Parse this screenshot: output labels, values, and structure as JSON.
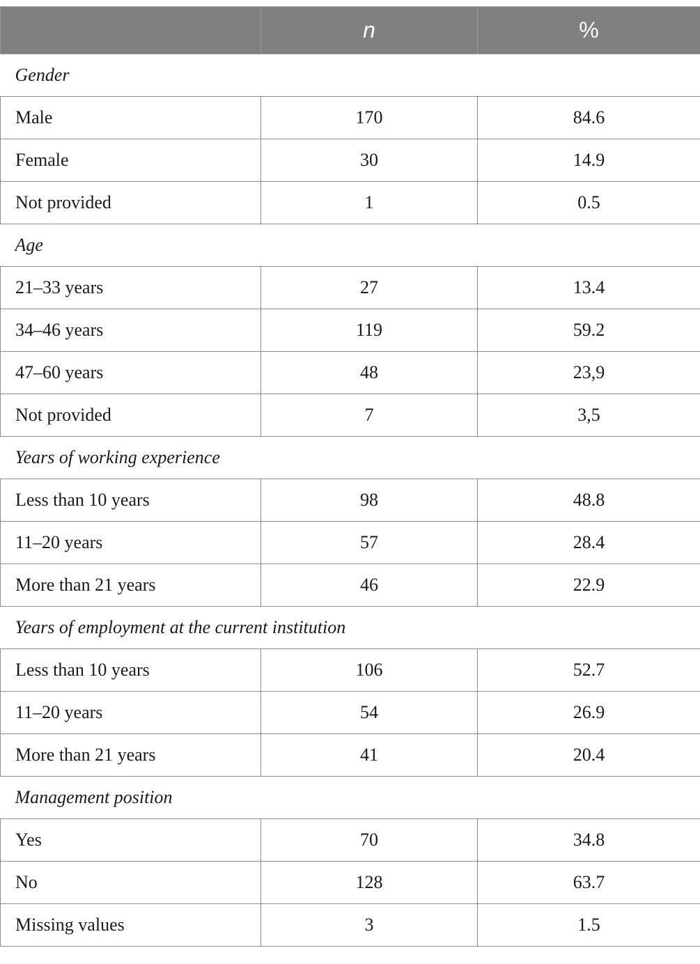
{
  "header": {
    "label": "",
    "n": "n",
    "pct": "%"
  },
  "sections": [
    {
      "title": "Gender",
      "rows": [
        {
          "label": "Male",
          "n": "170",
          "pct": "84.6"
        },
        {
          "label": "Female",
          "n": "30",
          "pct": "14.9"
        },
        {
          "label": "Not provided",
          "n": "1",
          "pct": "0.5"
        }
      ]
    },
    {
      "title": "Age",
      "rows": [
        {
          "label": "21–33 years",
          "n": "27",
          "pct": "13.4"
        },
        {
          "label": "34–46 years",
          "n": "119",
          "pct": "59.2"
        },
        {
          "label": "47–60 years",
          "n": "48",
          "pct": "23,9"
        },
        {
          "label": "Not provided",
          "n": "7",
          "pct": "3,5"
        }
      ]
    },
    {
      "title": "Years of working experience",
      "rows": [
        {
          "label": "Less than 10 years",
          "n": "98",
          "pct": "48.8"
        },
        {
          "label": "11–20 years",
          "n": "57",
          "pct": "28.4"
        },
        {
          "label": "More than 21 years",
          "n": "46",
          "pct": "22.9"
        }
      ]
    },
    {
      "title": "Years of employment at the current institution",
      "rows": [
        {
          "label": "Less than 10 years",
          "n": "106",
          "pct": "52.7"
        },
        {
          "label": "11–20 years",
          "n": "54",
          "pct": "26.9"
        },
        {
          "label": "More than 21 years",
          "n": "41",
          "pct": "20.4"
        }
      ]
    },
    {
      "title": "Management position",
      "rows": [
        {
          "label": "Yes",
          "n": "70",
          "pct": "34.8"
        },
        {
          "label": "No",
          "n": "128",
          "pct": "63.7"
        },
        {
          "label": "Missing values",
          "n": "3",
          "pct": "1.5"
        }
      ]
    }
  ]
}
